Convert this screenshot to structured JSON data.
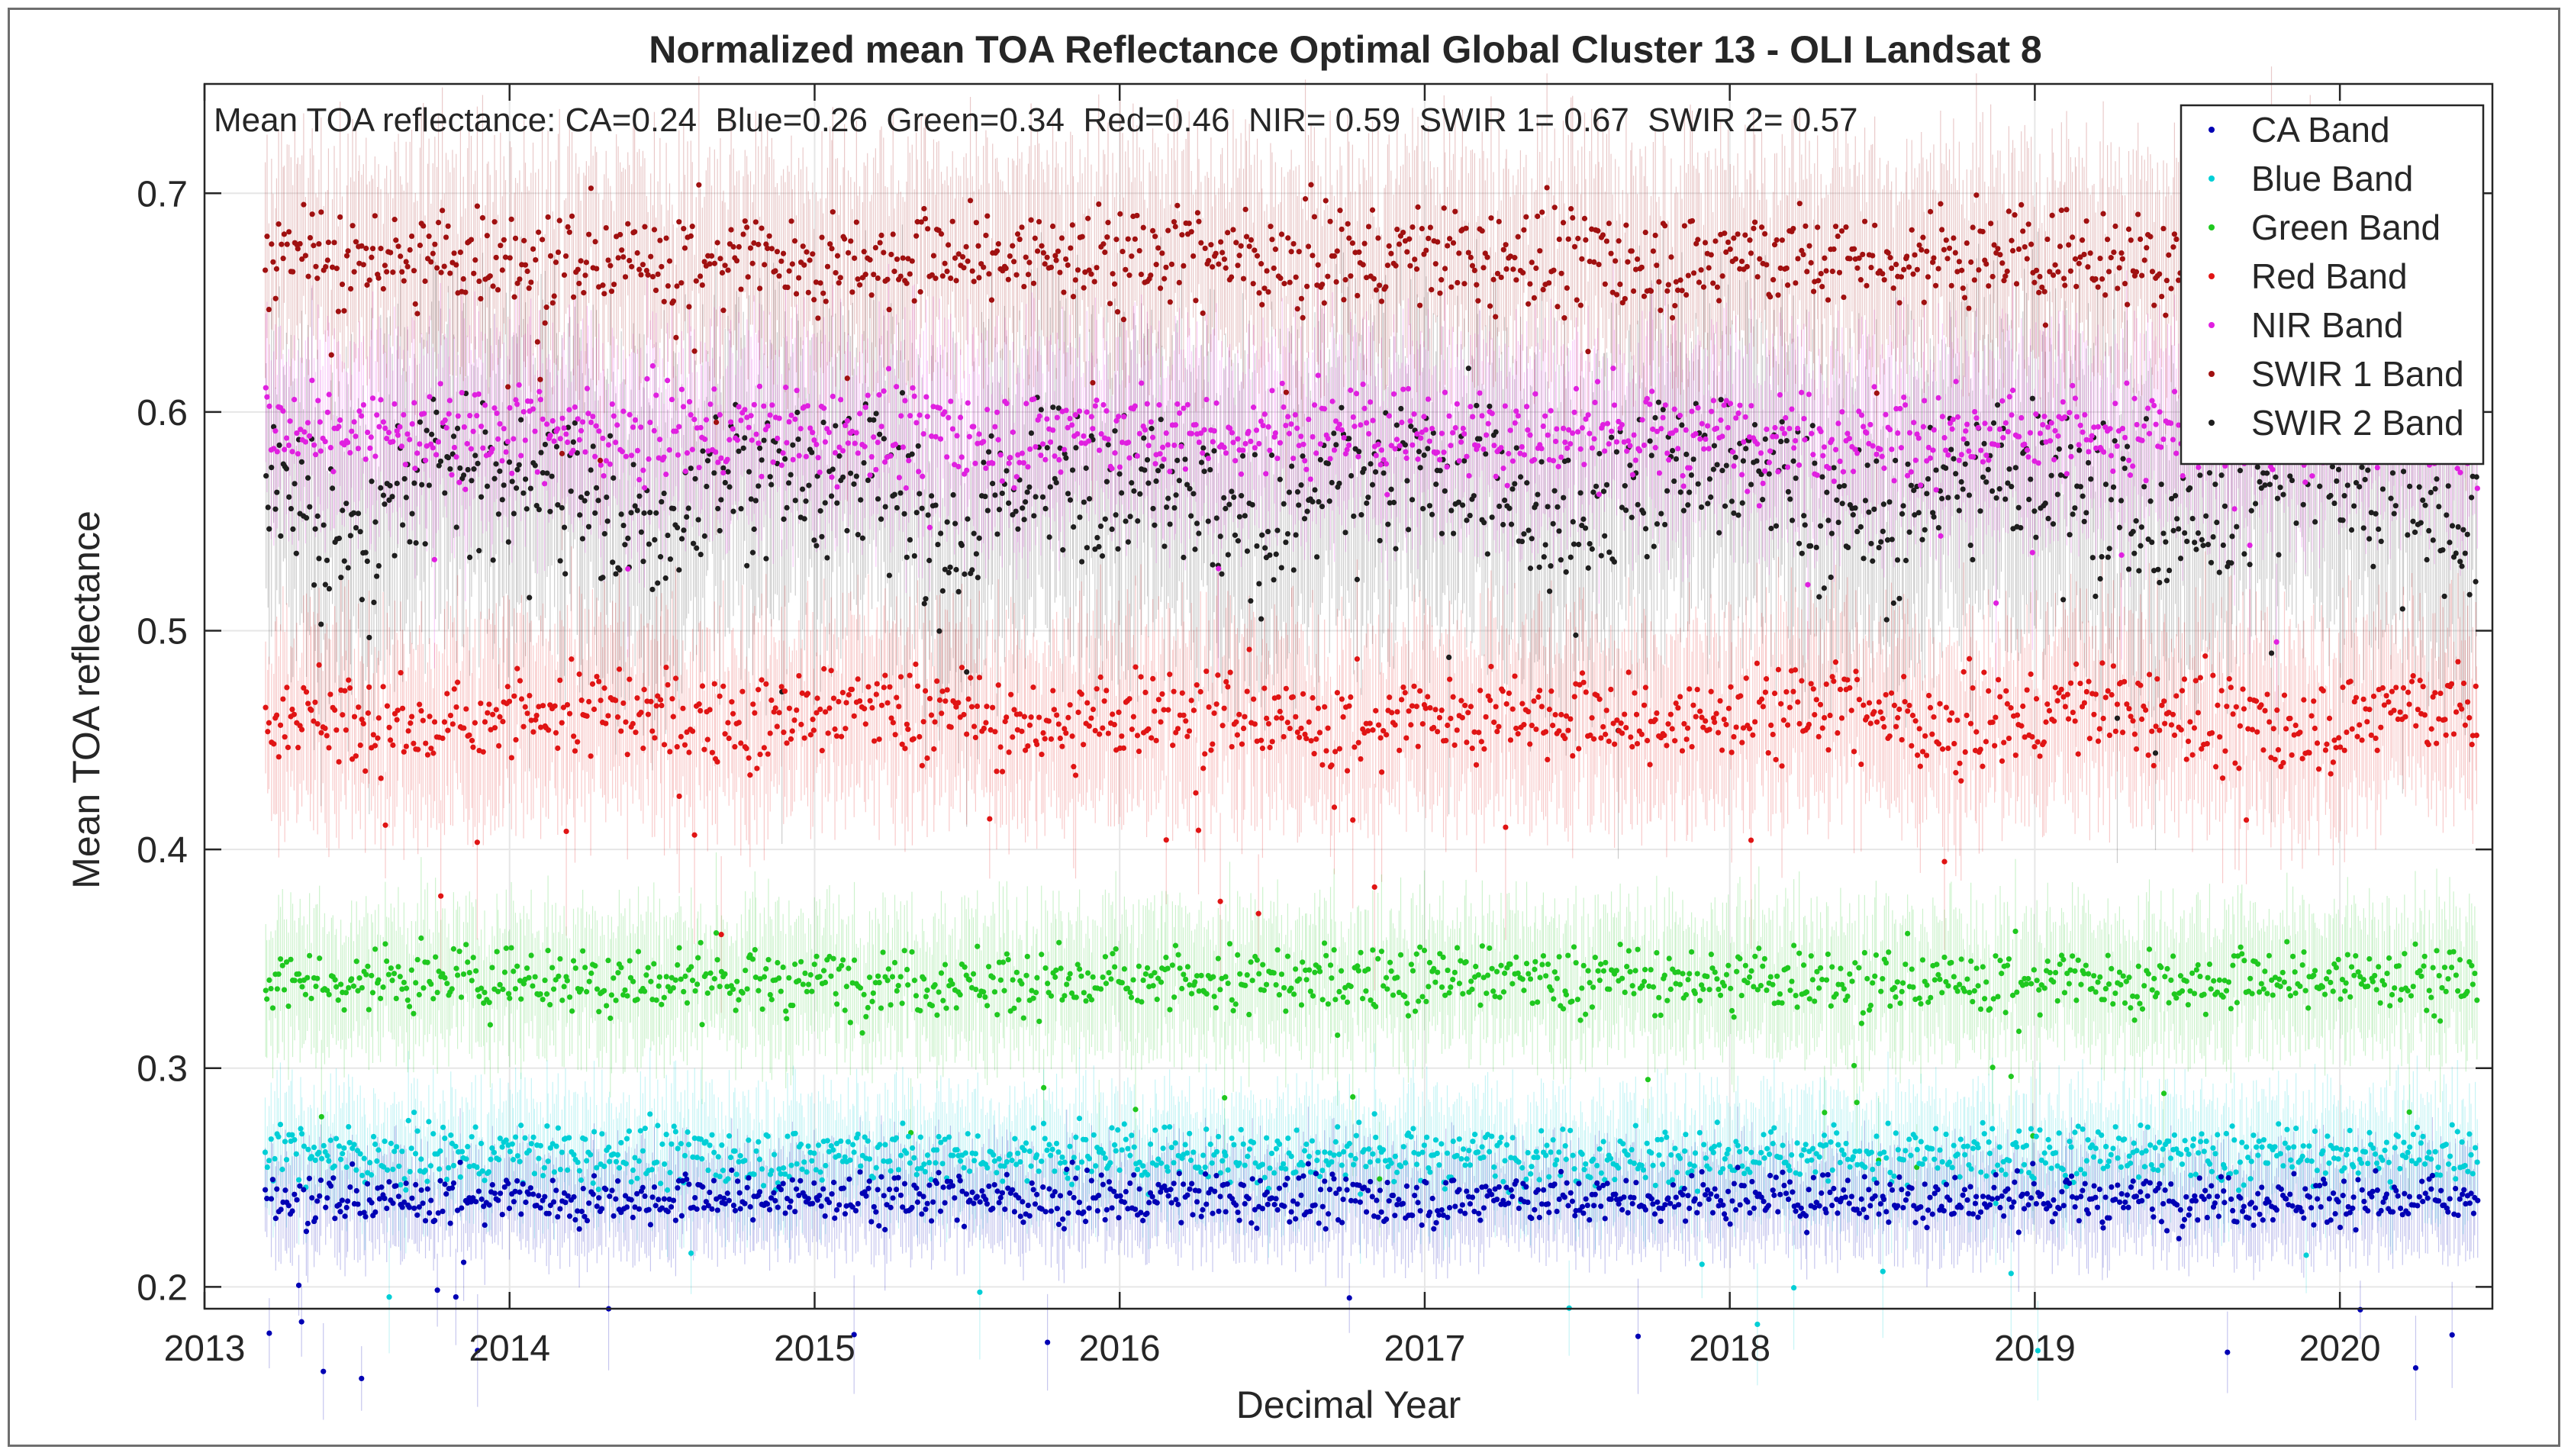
{
  "chart_data": {
    "type": "scatter",
    "title": "Normalized mean TOA Reflectance Optimal Global Cluster 13 - OLI Landsat 8",
    "annotation": "Mean TOA reflectance: CA=0.24  Blue=0.26  Green=0.34  Red=0.46  NIR= 0.59  SWIR 1= 0.67  SWIR 2= 0.57",
    "xlabel": "Decimal Year",
    "ylabel": "Mean TOA reflectance",
    "xlim": [
      2013,
      2020.5
    ],
    "ylim": [
      0.19,
      0.75
    ],
    "x_range_data": [
      2013.2,
      2020.45
    ],
    "x_ticks": [
      2013,
      2014,
      2015,
      2016,
      2017,
      2018,
      2019,
      2020
    ],
    "x_tick_labels": [
      "2013",
      "2014",
      "2015",
      "2016",
      "2017",
      "2018",
      "2019",
      "2020"
    ],
    "y_ticks": [
      0.2,
      0.3,
      0.4,
      0.5,
      0.6,
      0.7
    ],
    "y_tick_labels": [
      "0.2",
      "0.3",
      "0.4",
      "0.5",
      "0.6",
      "0.7"
    ],
    "grid": true,
    "legend_position": "top-right",
    "series": [
      {
        "name": "CA Band",
        "color": "#0000b4",
        "mean": 0.24,
        "spread": 0.006
      },
      {
        "name": "Blue Band",
        "color": "#00cfd6",
        "mean": 0.26,
        "spread": 0.007
      },
      {
        "name": "Green Band",
        "color": "#1fc81f",
        "mean": 0.34,
        "spread": 0.008
      },
      {
        "name": "Red Band",
        "color": "#e01414",
        "mean": 0.46,
        "spread": 0.011
      },
      {
        "name": "NIR Band",
        "color": "#e020e0",
        "mean": 0.59,
        "spread": 0.011
      },
      {
        "name": "SWIR 1 Band",
        "color": "#a01010",
        "mean": 0.67,
        "spread": 0.012
      },
      {
        "name": "SWIR 2 Band",
        "color": "#1e1e1e",
        "mean": 0.57,
        "spread": 0.018
      }
    ]
  }
}
